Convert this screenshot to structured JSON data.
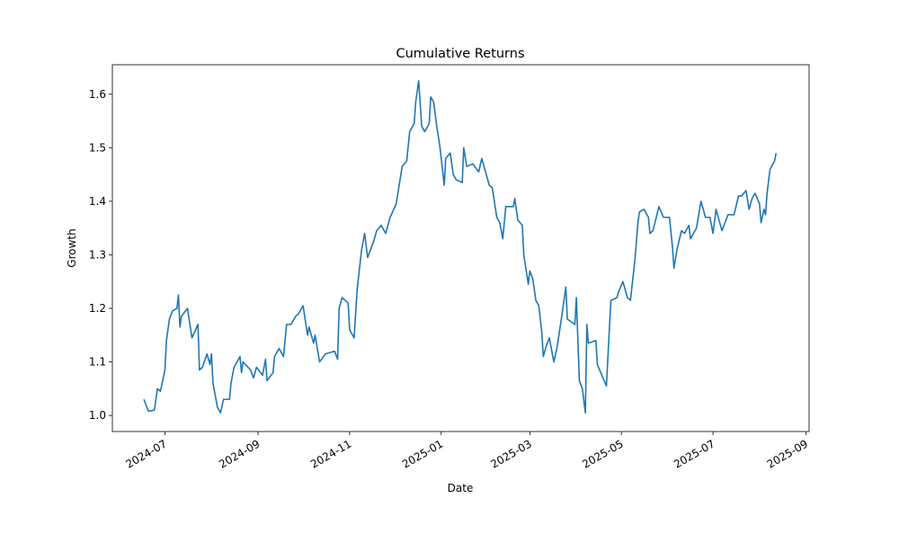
{
  "chart_data": {
    "type": "line",
    "title": "Cumulative Returns",
    "x_label": "Date",
    "y_label": "Growth",
    "x": [
      "2024-06-17",
      "2024-06-20",
      "2024-06-24",
      "2024-06-26",
      "2024-06-28",
      "2024-07-01",
      "2024-07-02",
      "2024-07-04",
      "2024-07-06",
      "2024-07-09",
      "2024-07-10",
      "2024-07-11",
      "2024-07-12",
      "2024-07-16",
      "2024-07-19",
      "2024-07-23",
      "2024-07-24",
      "2024-07-26",
      "2024-07-29",
      "2024-07-31",
      "2024-08-01",
      "2024-08-02",
      "2024-08-05",
      "2024-08-07",
      "2024-08-09",
      "2024-08-13",
      "2024-08-14",
      "2024-08-16",
      "2024-08-20",
      "2024-08-21",
      "2024-08-22",
      "2024-08-27",
      "2024-08-29",
      "2024-08-31",
      "2024-09-04",
      "2024-09-06",
      "2024-09-07",
      "2024-09-11",
      "2024-09-12",
      "2024-09-15",
      "2024-09-18",
      "2024-09-20",
      "2024-09-23",
      "2024-09-26",
      "2024-09-28",
      "2024-10-01",
      "2024-10-04",
      "2024-10-05",
      "2024-10-08",
      "2024-10-09",
      "2024-10-12",
      "2024-10-16",
      "2024-10-22",
      "2024-10-24",
      "2024-10-25",
      "2024-10-27",
      "2024-10-31",
      "2024-11-01",
      "2024-11-04",
      "2024-11-06",
      "2024-11-09",
      "2024-11-11",
      "2024-11-13",
      "2024-11-17",
      "2024-11-19",
      "2024-11-22",
      "2024-11-25",
      "2024-11-28",
      "2024-12-02",
      "2024-12-04",
      "2024-12-06",
      "2024-12-09",
      "2024-12-11",
      "2024-12-14",
      "2024-12-15",
      "2024-12-17",
      "2024-12-19",
      "2024-12-21",
      "2024-12-24",
      "2024-12-25",
      "2024-12-27",
      "2024-12-29",
      "2024-12-31",
      "2025-01-03",
      "2025-01-04",
      "2025-01-07",
      "2025-01-09",
      "2025-01-11",
      "2025-01-15",
      "2025-01-16",
      "2025-01-18",
      "2025-01-22",
      "2025-01-26",
      "2025-01-28",
      "2025-01-31",
      "2025-02-02",
      "2025-02-04",
      "2025-02-07",
      "2025-02-09",
      "2025-02-11",
      "2025-02-13",
      "2025-02-18",
      "2025-02-19",
      "2025-02-21",
      "2025-02-24",
      "2025-02-25",
      "2025-02-28",
      "2025-03-01",
      "2025-03-03",
      "2025-03-05",
      "2025-03-07",
      "2025-03-09",
      "2025-03-10",
      "2025-03-12",
      "2025-03-14",
      "2025-03-17",
      "2025-03-19",
      "2025-03-22",
      "2025-03-25",
      "2025-03-26",
      "2025-03-31",
      "2025-04-01",
      "2025-04-03",
      "2025-04-05",
      "2025-04-07",
      "2025-04-08",
      "2025-04-09",
      "2025-04-14",
      "2025-04-15",
      "2025-04-21",
      "2025-04-24",
      "2025-04-28",
      "2025-04-29",
      "2025-05-02",
      "2025-05-05",
      "2025-05-07",
      "2025-05-10",
      "2025-05-12",
      "2025-05-13",
      "2025-05-16",
      "2025-05-19",
      "2025-05-20",
      "2025-05-22",
      "2025-05-26",
      "2025-05-29",
      "2025-06-02",
      "2025-06-04",
      "2025-06-05",
      "2025-06-07",
      "2025-06-10",
      "2025-06-12",
      "2025-06-15",
      "2025-06-16",
      "2025-06-20",
      "2025-06-23",
      "2025-06-26",
      "2025-06-29",
      "2025-07-01",
      "2025-07-03",
      "2025-07-07",
      "2025-07-11",
      "2025-07-15",
      "2025-07-18",
      "2025-07-20",
      "2025-07-23",
      "2025-07-25",
      "2025-07-27",
      "2025-07-29",
      "2025-08-01",
      "2025-08-02",
      "2025-08-04",
      "2025-08-05",
      "2025-08-06",
      "2025-08-08",
      "2025-08-10",
      "2025-08-11",
      "2025-08-12"
    ],
    "series": [
      {
        "name": "Growth",
        "color": "#1f77b4",
        "values": [
          1.03,
          1.008,
          1.01,
          1.05,
          1.045,
          1.085,
          1.14,
          1.18,
          1.195,
          1.2,
          1.225,
          1.165,
          1.185,
          1.2,
          1.145,
          1.17,
          1.085,
          1.09,
          1.115,
          1.095,
          1.115,
          1.06,
          1.015,
          1.005,
          1.03,
          1.03,
          1.06,
          1.09,
          1.11,
          1.08,
          1.1,
          1.085,
          1.07,
          1.09,
          1.075,
          1.105,
          1.065,
          1.08,
          1.11,
          1.125,
          1.11,
          1.17,
          1.17,
          1.185,
          1.19,
          1.205,
          1.15,
          1.165,
          1.135,
          1.15,
          1.1,
          1.115,
          1.12,
          1.105,
          1.2,
          1.22,
          1.21,
          1.16,
          1.145,
          1.235,
          1.31,
          1.34,
          1.295,
          1.325,
          1.345,
          1.355,
          1.34,
          1.37,
          1.395,
          1.43,
          1.465,
          1.475,
          1.53,
          1.545,
          1.585,
          1.625,
          1.54,
          1.53,
          1.545,
          1.595,
          1.585,
          1.54,
          1.505,
          1.43,
          1.48,
          1.49,
          1.45,
          1.44,
          1.435,
          1.5,
          1.465,
          1.47,
          1.455,
          1.48,
          1.45,
          1.43,
          1.425,
          1.37,
          1.36,
          1.33,
          1.39,
          1.39,
          1.405,
          1.365,
          1.355,
          1.3,
          1.245,
          1.27,
          1.255,
          1.215,
          1.205,
          1.155,
          1.11,
          1.13,
          1.145,
          1.1,
          1.125,
          1.18,
          1.24,
          1.18,
          1.17,
          1.22,
          1.065,
          1.05,
          1.005,
          1.17,
          1.135,
          1.14,
          1.095,
          1.055,
          1.215,
          1.22,
          1.23,
          1.25,
          1.22,
          1.215,
          1.29,
          1.36,
          1.38,
          1.385,
          1.37,
          1.34,
          1.345,
          1.39,
          1.37,
          1.37,
          1.315,
          1.275,
          1.31,
          1.345,
          1.34,
          1.355,
          1.33,
          1.35,
          1.4,
          1.37,
          1.37,
          1.34,
          1.385,
          1.345,
          1.375,
          1.375,
          1.41,
          1.41,
          1.42,
          1.385,
          1.405,
          1.415,
          1.395,
          1.36,
          1.385,
          1.375,
          1.415,
          1.46,
          1.47,
          1.475,
          1.49
        ]
      }
    ],
    "xlim": [
      "2024-05-27",
      "2025-09-03"
    ],
    "xticks": [
      {
        "value": "2024-07-01",
        "label": "2024-07"
      },
      {
        "value": "2024-09-01",
        "label": "2024-09"
      },
      {
        "value": "2024-11-01",
        "label": "2024-11"
      },
      {
        "value": "2025-01-01",
        "label": "2025-01"
      },
      {
        "value": "2025-03-01",
        "label": "2025-03"
      },
      {
        "value": "2025-05-01",
        "label": "2025-05"
      },
      {
        "value": "2025-07-01",
        "label": "2025-07"
      },
      {
        "value": "2025-09-01",
        "label": "2025-09"
      }
    ],
    "ylim": [
      0.97,
      1.655
    ],
    "yticks": [
      {
        "value": 1,
        "label": "1.0"
      },
      1.1,
      1.2,
      1.3,
      1.4,
      1.5,
      1.6
    ],
    "grid": false
  }
}
